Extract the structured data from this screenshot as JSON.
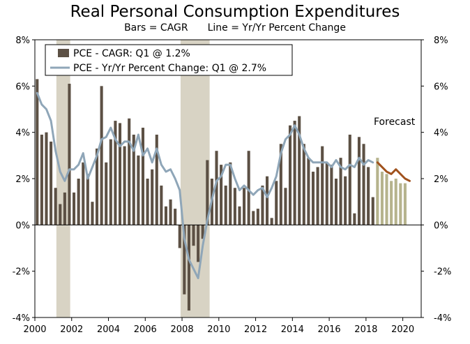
{
  "chart_data": {
    "type": "bar",
    "title": "Real Personal Consumption Expenditures",
    "subtitle_left": "Bars = CAGR",
    "subtitle_right": "Line = Yr/Yr Percent Change",
    "ylim": [
      -4,
      8
    ],
    "yticks": [
      "8%",
      "6%",
      "4%",
      "2%",
      "0%",
      "-2%",
      "-4%"
    ],
    "ytick_values": [
      8,
      6,
      4,
      2,
      0,
      -2,
      -4
    ],
    "xticks": [
      "2000",
      "2002",
      "2004",
      "2006",
      "2008",
      "2010",
      "2012",
      "2014",
      "2016",
      "2018",
      "2020"
    ],
    "xtick_years": [
      2000,
      2002,
      2004,
      2006,
      2008,
      2010,
      2012,
      2014,
      2016,
      2018,
      2020
    ],
    "x_start": 2000.0,
    "x_end": 2021.0,
    "legend": {
      "bars": "PCE - CAGR: Q1 @ 1.2%",
      "line": "PCE - Yr/Yr Percent Change: Q1 @ 2.7%"
    },
    "annotation": "Forecast",
    "colors": {
      "bars": "#5c5044",
      "forecast_bars": "#b6b38d",
      "line": "#8fa6b8",
      "forecast_line": "#a0521d",
      "recession": "#d8d3c4"
    },
    "recessions": [
      [
        2001.17,
        2001.92
      ],
      [
        2007.92,
        2009.5
      ]
    ],
    "series": [
      {
        "name": "PCE - CAGR",
        "start": 2000.0,
        "step": 0.25,
        "values": [
          6.3,
          3.9,
          4.0,
          3.6,
          1.6,
          0.9,
          1.4,
          6.1,
          1.4,
          2.0,
          2.7,
          2.2,
          1.0,
          3.3,
          6.0,
          2.7,
          3.7,
          4.5,
          4.4,
          3.4,
          4.6,
          3.9,
          3.0,
          4.2,
          2.0,
          2.4,
          3.9,
          1.7,
          0.8,
          1.1,
          0.7,
          -1.0,
          -3.0,
          -3.7,
          -0.9,
          -1.6,
          -0.6,
          2.8,
          2.0,
          3.2,
          2.6,
          1.7,
          2.7,
          1.6,
          0.8,
          1.6,
          3.2,
          0.6,
          0.7,
          1.7,
          2.1,
          0.3,
          1.9,
          3.5,
          1.6,
          4.3,
          4.5,
          4.7,
          3.5,
          2.9,
          2.3,
          2.5,
          3.4,
          2.7,
          2.6,
          2.0,
          2.9,
          2.1,
          3.9,
          0.5,
          3.8,
          3.5,
          2.5,
          1.2
        ]
      },
      {
        "name": "PCE - CAGR (Forecast)",
        "start": 2018.5,
        "step": 0.25,
        "values": [
          2.9,
          2.3,
          2.2,
          1.9,
          2.0,
          1.8,
          1.8
        ]
      },
      {
        "name": "PCE - Yr/Yr Percent Change",
        "start": 2000.0,
        "step": 0.25,
        "values": [
          5.7,
          5.2,
          5.0,
          4.5,
          3.2,
          2.3,
          1.9,
          2.4,
          2.4,
          2.6,
          3.1,
          2.0,
          2.5,
          3.0,
          3.7,
          3.8,
          4.2,
          3.7,
          3.4,
          3.6,
          3.6,
          3.2,
          3.9,
          3.0,
          3.3,
          2.7,
          3.3,
          2.6,
          2.3,
          2.4,
          2.0,
          1.5,
          -0.6,
          -1.5,
          -1.9,
          -2.3,
          -0.9,
          0.2,
          1.1,
          1.9,
          2.1,
          2.6,
          2.6,
          2.0,
          1.5,
          1.7,
          1.5,
          1.3,
          1.5,
          1.6,
          1.2,
          1.6,
          2.1,
          3.1,
          3.7,
          3.9,
          4.3,
          3.9,
          3.3,
          2.9,
          2.7,
          2.7,
          2.7,
          2.7,
          2.5,
          2.8,
          2.5,
          2.4,
          2.6,
          2.5,
          2.9,
          2.6,
          2.8,
          2.7
        ]
      },
      {
        "name": "PCE - Yr/Yr Percent Change (Forecast)",
        "start": 2018.5,
        "step": 0.25,
        "values": [
          2.7,
          2.5,
          2.3,
          2.2,
          2.4,
          2.2,
          2.0,
          1.9
        ]
      }
    ]
  }
}
